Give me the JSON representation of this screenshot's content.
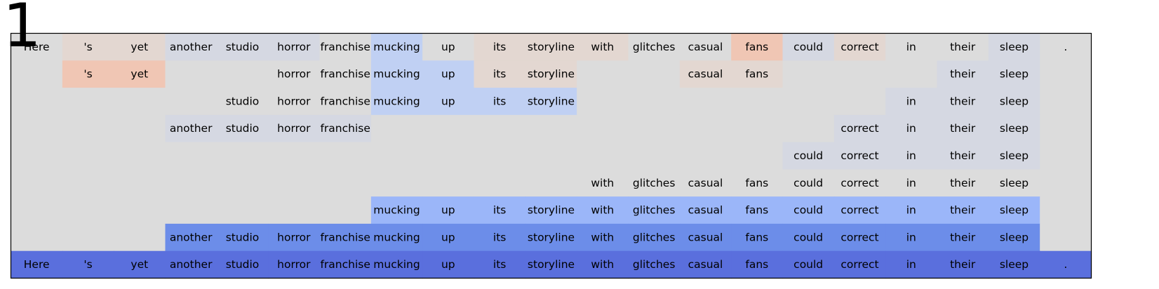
{
  "panel_number": "1",
  "chart_data": {
    "type": "heatmap",
    "title": "",
    "tokens": [
      "Here",
      "'s",
      "yet",
      "another",
      "studio",
      "horror",
      "franchise",
      "mucking",
      "up",
      "its",
      "storyline",
      "with",
      "glitches",
      "casual",
      "fans",
      "could",
      "correct",
      "in",
      "their",
      "sleep",
      "."
    ],
    "rows": [
      {
        "mask": [
          1,
          1,
          1,
          1,
          1,
          1,
          1,
          1,
          1,
          1,
          1,
          1,
          1,
          1,
          1,
          1,
          1,
          1,
          1,
          1,
          1
        ],
        "colors": [
          "none",
          "#E3D7D1",
          "#E3D7D1",
          "#D5D8E2",
          "#D5D8E2",
          "#D5D8E2",
          "#DCDCDC",
          "#C0D0F3",
          "#DCDCDC",
          "#E3D7D1",
          "#E3D7D1",
          "#E3D7D1",
          "#DCDCDC",
          "#DCDCDC",
          "#F0C6B4",
          "#D5D8E2",
          "#E3D7D1",
          "#DCDCDC",
          "#DCDCDC",
          "#D5D8E2",
          "#DCDCDC"
        ]
      },
      {
        "mask": [
          0,
          1,
          1,
          0,
          0,
          1,
          1,
          1,
          1,
          1,
          1,
          0,
          0,
          1,
          1,
          0,
          0,
          0,
          1,
          1,
          0
        ],
        "colors": [
          "#DCDCDC",
          "#F0C6B4",
          "#F0C6B4",
          "#DCDCDC",
          "#DCDCDC",
          "#DCDCDC",
          "#DCDCDC",
          "#C0D0F3",
          "#C0D0F3",
          "#E3D7D1",
          "#E3D7D1",
          "#DCDCDC",
          "#DCDCDC",
          "#E3D7D1",
          "#E3D7D1",
          "#DCDCDC",
          "#DCDCDC",
          "#DCDCDC",
          "#D5D8E2",
          "#D5D8E2",
          "#DCDCDC"
        ]
      },
      {
        "mask": [
          0,
          0,
          0,
          0,
          1,
          1,
          1,
          1,
          1,
          1,
          1,
          0,
          0,
          0,
          0,
          0,
          0,
          1,
          1,
          1,
          0
        ],
        "colors": [
          "#DCDCDC",
          "#DCDCDC",
          "#DCDCDC",
          "#DCDCDC",
          "#DCDCDC",
          "#DCDCDC",
          "#DCDCDC",
          "#C0D0F3",
          "#C0D0F3",
          "#C0D0F3",
          "#C0D0F3",
          "#DCDCDC",
          "#DCDCDC",
          "#DCDCDC",
          "#DCDCDC",
          "#DCDCDC",
          "#DCDCDC",
          "#D5D8E2",
          "#D5D8E2",
          "#D5D8E2",
          "#DCDCDC"
        ]
      },
      {
        "mask": [
          0,
          0,
          0,
          1,
          1,
          1,
          1,
          0,
          0,
          0,
          0,
          0,
          0,
          0,
          0,
          0,
          1,
          1,
          1,
          1,
          0
        ],
        "colors": [
          "#DCDCDC",
          "#DCDCDC",
          "#DCDCDC",
          "#D5D8E2",
          "#D5D8E2",
          "#D5D8E2",
          "#D5D8E2",
          "#DCDCDC",
          "#DCDCDC",
          "#DCDCDC",
          "#DCDCDC",
          "#DCDCDC",
          "#DCDCDC",
          "#DCDCDC",
          "#DCDCDC",
          "#DCDCDC",
          "#D5D8E2",
          "#D5D8E2",
          "#D5D8E2",
          "#D5D8E2",
          "#DCDCDC"
        ]
      },
      {
        "mask": [
          0,
          0,
          0,
          0,
          0,
          0,
          0,
          0,
          0,
          0,
          0,
          0,
          0,
          0,
          0,
          1,
          1,
          1,
          1,
          1,
          0
        ],
        "colors": [
          "#DCDCDC",
          "#DCDCDC",
          "#DCDCDC",
          "#DCDCDC",
          "#DCDCDC",
          "#DCDCDC",
          "#DCDCDC",
          "#DCDCDC",
          "#DCDCDC",
          "#DCDCDC",
          "#DCDCDC",
          "#DCDCDC",
          "#DCDCDC",
          "#DCDCDC",
          "#DCDCDC",
          "#D5D8E2",
          "#D5D8E2",
          "#D5D8E2",
          "#D5D8E2",
          "#D5D8E2",
          "#DCDCDC"
        ]
      },
      {
        "mask": [
          0,
          0,
          0,
          0,
          0,
          0,
          0,
          0,
          0,
          0,
          0,
          1,
          1,
          1,
          1,
          1,
          1,
          1,
          1,
          1,
          0
        ],
        "colors": [
          "#DCDCDC",
          "#DCDCDC",
          "#DCDCDC",
          "#DCDCDC",
          "#DCDCDC",
          "#DCDCDC",
          "#DCDCDC",
          "#DCDCDC",
          "#DCDCDC",
          "#DCDCDC",
          "#DCDCDC",
          "#DCDCDC",
          "#DCDCDC",
          "#DCDCDC",
          "#DCDCDC",
          "#DCDCDC",
          "#DCDCDC",
          "#DCDCDC",
          "#DCDCDC",
          "#DCDCDC",
          "#DCDCDC"
        ]
      },
      {
        "mask": [
          0,
          0,
          0,
          0,
          0,
          0,
          0,
          1,
          1,
          1,
          1,
          1,
          1,
          1,
          1,
          1,
          1,
          1,
          1,
          1,
          0
        ],
        "colors": [
          "#DCDCDC",
          "#DCDCDC",
          "#DCDCDC",
          "#DCDCDC",
          "#DCDCDC",
          "#DCDCDC",
          "#DCDCDC",
          "#9BB6F9",
          "#9BB6F9",
          "#9BB6F9",
          "#9BB6F9",
          "#9BB6F9",
          "#9BB6F9",
          "#9BB6F9",
          "#9BB6F9",
          "#9BB6F9",
          "#9BB6F9",
          "#9BB6F9",
          "#9BB6F9",
          "#9BB6F9",
          "#DCDCDC"
        ]
      },
      {
        "mask": [
          0,
          0,
          0,
          1,
          1,
          1,
          1,
          1,
          1,
          1,
          1,
          1,
          1,
          1,
          1,
          1,
          1,
          1,
          1,
          1,
          0
        ],
        "colors": [
          "#DCDCDC",
          "#DCDCDC",
          "#DCDCDC",
          "#6C8DE9",
          "#6C8DE9",
          "#6C8DE9",
          "#6C8DE9",
          "#6C8DE9",
          "#6C8DE9",
          "#6C8DE9",
          "#6C8DE9",
          "#6C8DE9",
          "#6C8DE9",
          "#6C8DE9",
          "#6C8DE9",
          "#6C8DE9",
          "#6C8DE9",
          "#6C8DE9",
          "#6C8DE9",
          "#6C8DE9",
          "#DCDCDC"
        ]
      },
      {
        "mask": [
          1,
          1,
          1,
          1,
          1,
          1,
          1,
          1,
          1,
          1,
          1,
          1,
          1,
          1,
          1,
          1,
          1,
          1,
          1,
          1,
          1
        ],
        "colors": [
          "#5A6FDD",
          "#5A6FDD",
          "#5A6FDD",
          "#5A6FDD",
          "#5A6FDD",
          "#5A6FDD",
          "#5A6FDD",
          "#5A6FDD",
          "#5A6FDD",
          "#5A6FDD",
          "#5A6FDD",
          "#5A6FDD",
          "#5A6FDD",
          "#5A6FDD",
          "#5A6FDD",
          "#5A6FDD",
          "#5A6FDD",
          "#5A6FDD",
          "#5A6FDD",
          "#5A6FDD",
          "#5A6FDD"
        ]
      }
    ],
    "background_color": "#DCDCDC",
    "colormap": "coolwarm"
  }
}
